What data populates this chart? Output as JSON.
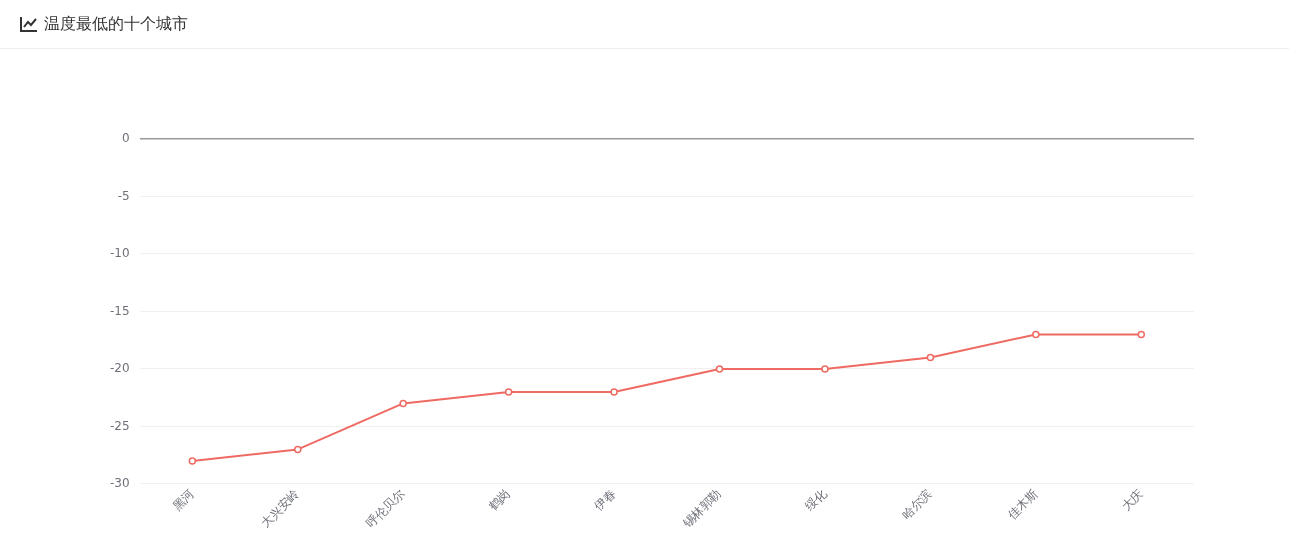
{
  "chart_data": {
    "type": "line",
    "title": "温度最低的十个城市",
    "categories": [
      "黑河",
      "大兴安岭",
      "呼伦贝尔",
      "鹤岗",
      "伊春",
      "锡林郭勒",
      "绥化",
      "哈尔滨",
      "佳木斯",
      "大庆"
    ],
    "series": [
      {
        "color": "#ee6a62",
        "values": [
          -28,
          -27,
          -23,
          -22,
          -22,
          -20,
          -20,
          -19,
          -17,
          -17
        ]
      }
    ],
    "ylim": [
      -30,
      0
    ],
    "yticks": [
      0,
      -5,
      -10,
      -15,
      -20,
      -25,
      -30
    ],
    "grid": "y",
    "marker": "circle",
    "line_style": "solid",
    "legend": false
  }
}
